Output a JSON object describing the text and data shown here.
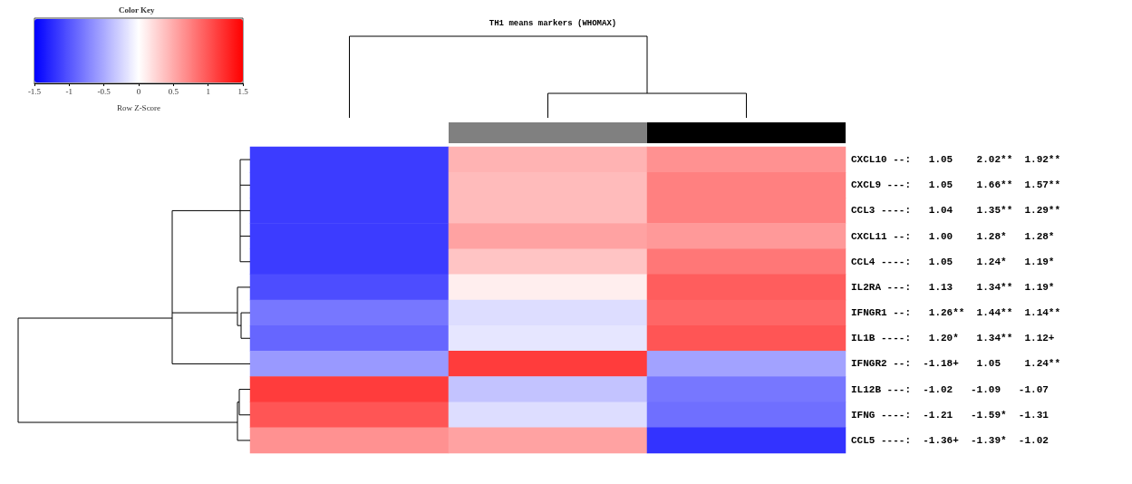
{
  "chart_data": {
    "type": "heatmap",
    "title": "TH1 means markers (WHOMAX)",
    "categories": [
      null,
      null,
      null
    ],
    "y_categories": [
      "CXCL10 --:   1.05    2.02**  1.92**",
      "CXCL9 ---:   1.05    1.66**  1.57**",
      "CCL3 ----:   1.04    1.35**  1.29**",
      "CXCL11 --:   1.00    1.28*   1.28*",
      "CCL4 ----:   1.05    1.24*   1.19*",
      "IL2RA ---:   1.13    1.34**  1.19*",
      "IFNGR1 --:   1.26**  1.44**  1.14**",
      "IL1B ----:   1.20*   1.34**  1.12+",
      "IFNGR2 --:  -1.18+   1.05    1.24**",
      "IL12B ---:  -1.02   -1.09   -1.07",
      "IFNG ----:  -1.21   -1.59*  -1.31",
      "CCL5 ----:  -1.36+  -1.39*  -1.02"
    ],
    "cells": [
      [
        -1.15,
        0.45,
        0.65
      ],
      [
        -1.15,
        0.4,
        0.75
      ],
      [
        -1.15,
        0.4,
        0.75
      ],
      [
        -1.15,
        0.55,
        0.6
      ],
      [
        -1.15,
        0.35,
        0.8
      ],
      [
        -1.05,
        0.1,
        0.95
      ],
      [
        -0.8,
        -0.2,
        0.9
      ],
      [
        -0.9,
        -0.15,
        1.0
      ],
      [
        -0.6,
        1.15,
        -0.55
      ],
      [
        1.15,
        -0.35,
        -0.8
      ],
      [
        1.0,
        -0.2,
        -0.85
      ],
      [
        0.65,
        0.55,
        -1.2
      ]
    ],
    "clim": [
      -1.5,
      1.5
    ],
    "cticks": [
      -1.5,
      -1,
      -0.5,
      0,
      0.5,
      1,
      1.5
    ],
    "clabel": "Row Z-Score",
    "annotations": [
      "Color Key"
    ]
  }
}
